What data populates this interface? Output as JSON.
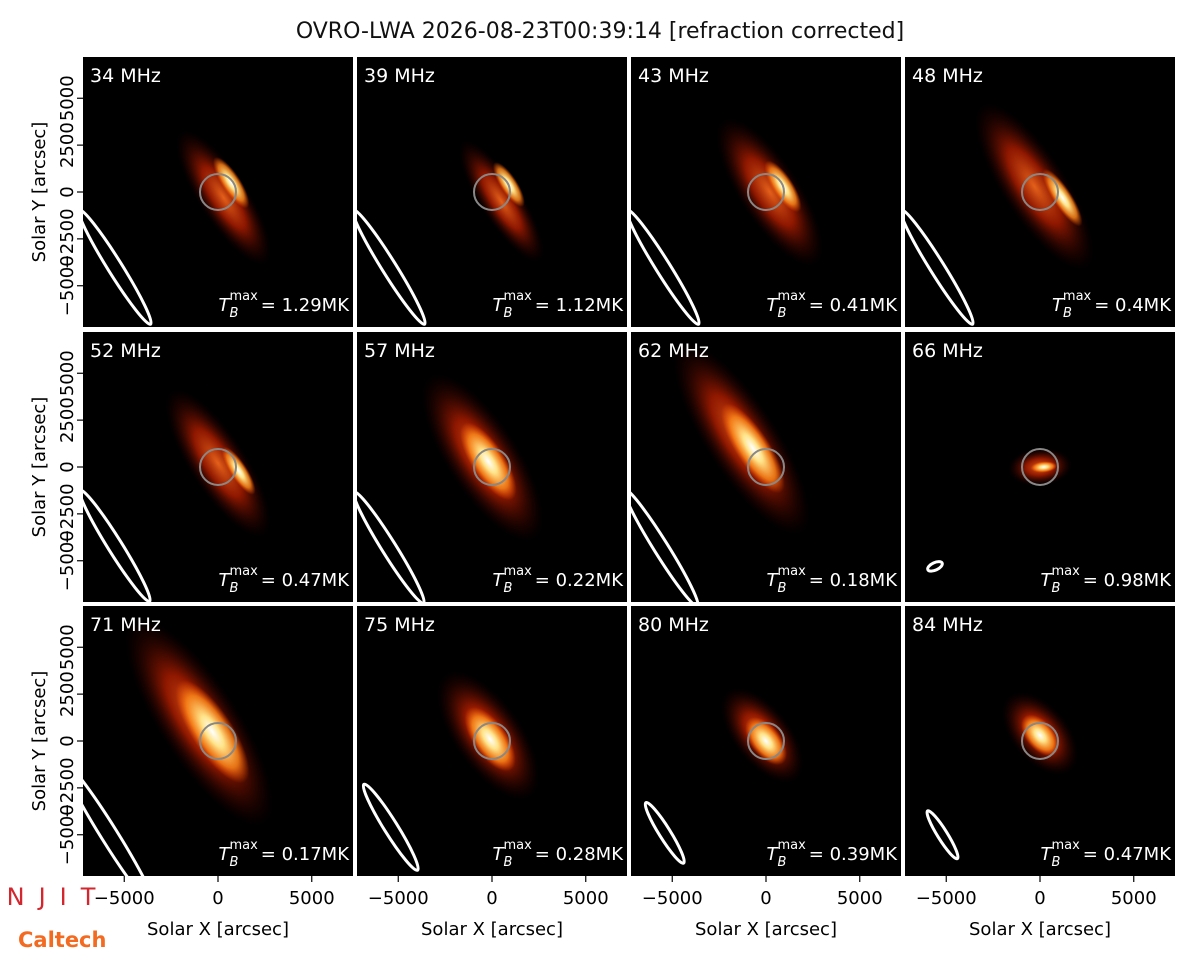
{
  "title": "OVRO-LWA 2026-08-23T00:39:14 [refraction corrected]",
  "axes": {
    "xlabel": "Solar X [arcsec]",
    "ylabel": "Solar Y [arcsec]",
    "xlim": [
      -7200,
      7200
    ],
    "ylim": [
      -7200,
      7200
    ],
    "xticks": [
      {
        "value": -5000,
        "label": "−5000"
      },
      0,
      5000
    ],
    "yticks": [
      {
        "value": -5000,
        "label": "−5000"
      },
      {
        "value": -2500,
        "label": "−2500"
      },
      0,
      2500,
      5000
    ]
  },
  "tb_symbol": {
    "symbol": "T",
    "subscript": "B",
    "superscript": "max"
  },
  "logos": [
    "NJIT",
    "Caltech"
  ],
  "chart_data": [
    {
      "type": "image",
      "title": "34 MHz",
      "annotation": "= 1.29MK"
    },
    {
      "type": "image",
      "title": "39 MHz",
      "annotation": "= 1.12MK"
    },
    {
      "type": "image",
      "title": "43 MHz",
      "annotation": "= 0.41MK"
    },
    {
      "type": "image",
      "title": "48 MHz",
      "annotation": "= 0.4MK"
    },
    {
      "type": "image",
      "title": "52 MHz",
      "annotation": "= 0.47MK"
    },
    {
      "type": "image",
      "title": "57 MHz",
      "annotation": "= 0.22MK"
    },
    {
      "type": "image",
      "title": "62 MHz",
      "annotation": "= 0.18MK"
    },
    {
      "type": "image",
      "title": "66 MHz",
      "annotation": "= 0.98MK"
    },
    {
      "type": "image",
      "title": "71 MHz",
      "annotation": "= 0.17MK"
    },
    {
      "type": "image",
      "title": "75 MHz",
      "annotation": "= 0.28MK"
    },
    {
      "type": "image",
      "title": "80 MHz",
      "annotation": "= 0.39MK"
    },
    {
      "type": "image",
      "title": "84 MHz",
      "annotation": "= 0.47MK"
    }
  ]
}
